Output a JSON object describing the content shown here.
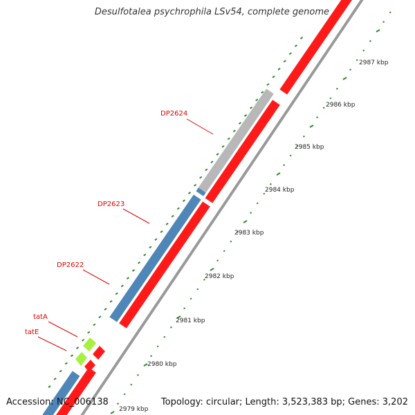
{
  "title": "Desulfotalea psychrophila LSv54, complete genome",
  "footer": {
    "accession": "Accession: NC_006138",
    "topology": "Topology: circular; Length: 3,523,383 bp; Genes: 3,202"
  },
  "ruler_labels": [
    "2979 kbp",
    "2980 kbp",
    "2981 kbp",
    "2982 kbp",
    "2983 kbp",
    "2984 kbp",
    "2985 kbp",
    "2986 kbp",
    "2987 kbp"
  ],
  "gene_labels": [
    "DP2624",
    "DP2623",
    "DP2622",
    "tatA",
    "tatE"
  ],
  "colors": {
    "forward_cds": "#ff1a1a",
    "reverse_cds": "#4f86b8",
    "trna": "#b8b8b8",
    "small_gene": "#a6f040",
    "backbone": "#999999",
    "tick": "#2a8a2a",
    "label": "#dd0000"
  }
}
